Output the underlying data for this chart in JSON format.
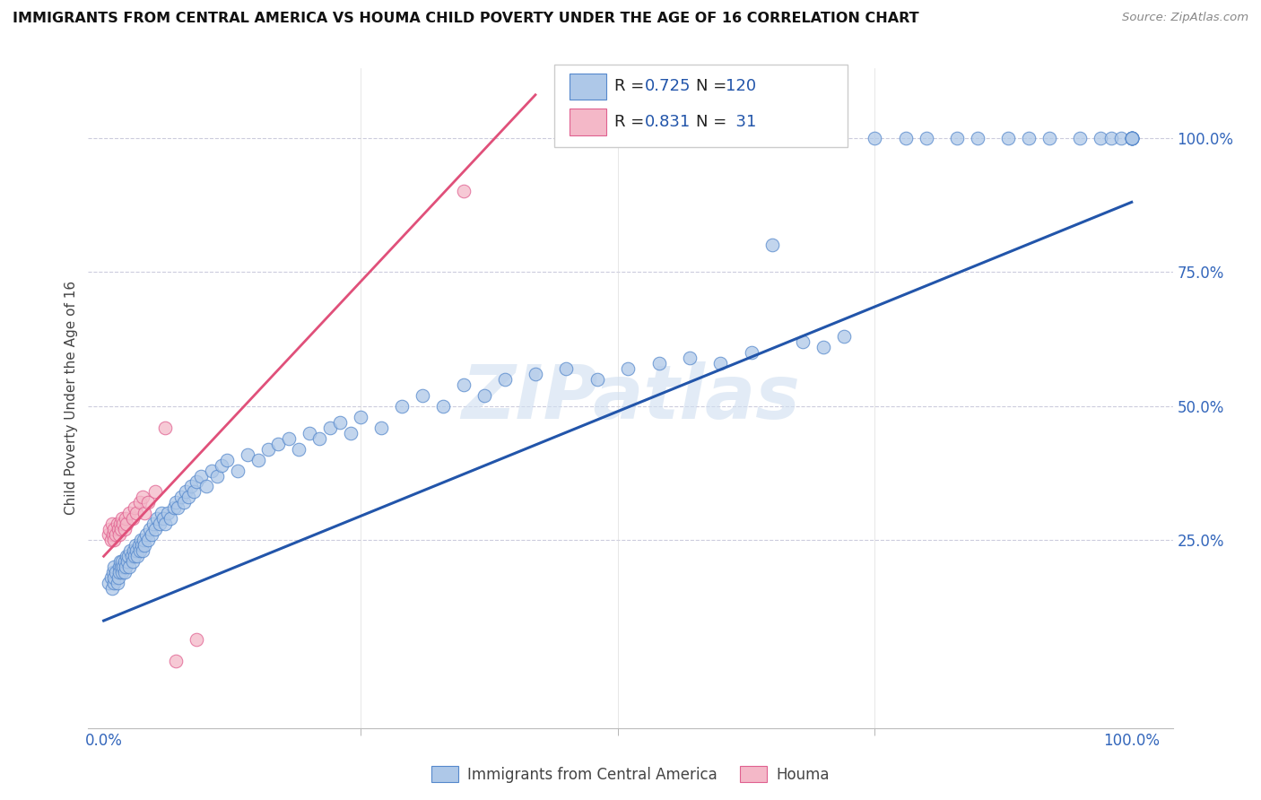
{
  "title": "IMMIGRANTS FROM CENTRAL AMERICA VS HOUMA CHILD POVERTY UNDER THE AGE OF 16 CORRELATION CHART",
  "source": "Source: ZipAtlas.com",
  "ylabel": "Child Poverty Under the Age of 16",
  "xtick_labels": [
    "0.0%",
    "100.0%"
  ],
  "xtick_vals": [
    0.0,
    1.0
  ],
  "ytick_labels": [
    "25.0%",
    "50.0%",
    "75.0%",
    "100.0%"
  ],
  "ytick_vals": [
    0.25,
    0.5,
    0.75,
    1.0
  ],
  "blue_R": 0.725,
  "blue_N": 120,
  "pink_R": 0.831,
  "pink_N": 31,
  "blue_color": "#aec8e8",
  "pink_color": "#f4b8c8",
  "blue_edge_color": "#5588cc",
  "pink_edge_color": "#e06090",
  "blue_line_color": "#2255aa",
  "pink_line_color": "#e0507a",
  "watermark_text": "ZIPatlas",
  "legend_label_blue": "Immigrants from Central America",
  "legend_label_pink": "Houma",
  "blue_line": [
    0.0,
    1.0,
    0.1,
    0.88
  ],
  "pink_line": [
    0.0,
    0.42,
    0.22,
    1.08
  ],
  "blue_x": [
    0.005,
    0.007,
    0.008,
    0.009,
    0.01,
    0.01,
    0.01,
    0.012,
    0.013,
    0.014,
    0.015,
    0.015,
    0.016,
    0.017,
    0.018,
    0.018,
    0.019,
    0.02,
    0.02,
    0.021,
    0.022,
    0.023,
    0.024,
    0.025,
    0.026,
    0.027,
    0.028,
    0.029,
    0.03,
    0.031,
    0.032,
    0.033,
    0.034,
    0.035,
    0.036,
    0.037,
    0.038,
    0.039,
    0.04,
    0.041,
    0.043,
    0.045,
    0.047,
    0.048,
    0.05,
    0.052,
    0.054,
    0.056,
    0.058,
    0.06,
    0.062,
    0.065,
    0.068,
    0.07,
    0.072,
    0.075,
    0.078,
    0.08,
    0.082,
    0.085,
    0.088,
    0.09,
    0.095,
    0.1,
    0.105,
    0.11,
    0.115,
    0.12,
    0.13,
    0.14,
    0.15,
    0.16,
    0.17,
    0.18,
    0.19,
    0.2,
    0.21,
    0.22,
    0.23,
    0.24,
    0.25,
    0.27,
    0.29,
    0.31,
    0.33,
    0.35,
    0.37,
    0.39,
    0.42,
    0.45,
    0.48,
    0.51,
    0.54,
    0.57,
    0.6,
    0.63,
    0.65,
    0.68,
    0.7,
    0.72,
    0.75,
    0.78,
    0.8,
    0.83,
    0.85,
    0.88,
    0.9,
    0.92,
    0.95,
    0.97,
    0.98,
    0.99,
    1.0,
    1.0,
    1.0,
    1.0,
    1.0,
    1.0,
    1.0,
    1.0
  ],
  "blue_y": [
    0.17,
    0.18,
    0.16,
    0.19,
    0.17,
    0.18,
    0.2,
    0.19,
    0.17,
    0.18,
    0.2,
    0.19,
    0.21,
    0.2,
    0.19,
    0.21,
    0.2,
    0.19,
    0.21,
    0.2,
    0.22,
    0.21,
    0.22,
    0.2,
    0.23,
    0.22,
    0.21,
    0.23,
    0.22,
    0.24,
    0.23,
    0.22,
    0.24,
    0.23,
    0.25,
    0.24,
    0.23,
    0.25,
    0.24,
    0.26,
    0.25,
    0.27,
    0.26,
    0.28,
    0.27,
    0.29,
    0.28,
    0.3,
    0.29,
    0.28,
    0.3,
    0.29,
    0.31,
    0.32,
    0.31,
    0.33,
    0.32,
    0.34,
    0.33,
    0.35,
    0.34,
    0.36,
    0.37,
    0.35,
    0.38,
    0.37,
    0.39,
    0.4,
    0.38,
    0.41,
    0.4,
    0.42,
    0.43,
    0.44,
    0.42,
    0.45,
    0.44,
    0.46,
    0.47,
    0.45,
    0.48,
    0.46,
    0.5,
    0.52,
    0.5,
    0.54,
    0.52,
    0.55,
    0.56,
    0.57,
    0.55,
    0.57,
    0.58,
    0.59,
    0.58,
    0.6,
    0.8,
    0.62,
    0.61,
    0.63,
    1.0,
    1.0,
    1.0,
    1.0,
    1.0,
    1.0,
    1.0,
    1.0,
    1.0,
    1.0,
    1.0,
    1.0,
    1.0,
    1.0,
    1.0,
    1.0,
    1.0,
    1.0,
    1.0,
    1.0
  ],
  "pink_x": [
    0.005,
    0.006,
    0.007,
    0.008,
    0.009,
    0.01,
    0.01,
    0.012,
    0.013,
    0.014,
    0.015,
    0.016,
    0.017,
    0.018,
    0.019,
    0.02,
    0.021,
    0.022,
    0.025,
    0.028,
    0.03,
    0.032,
    0.035,
    0.038,
    0.04,
    0.043,
    0.05,
    0.06,
    0.07,
    0.09,
    0.35
  ],
  "pink_y": [
    0.26,
    0.27,
    0.25,
    0.28,
    0.26,
    0.25,
    0.27,
    0.26,
    0.28,
    0.27,
    0.26,
    0.28,
    0.27,
    0.29,
    0.28,
    0.27,
    0.29,
    0.28,
    0.3,
    0.29,
    0.31,
    0.3,
    0.32,
    0.33,
    0.3,
    0.32,
    0.34,
    0.46,
    0.0,
    0.0,
    0.9
  ]
}
